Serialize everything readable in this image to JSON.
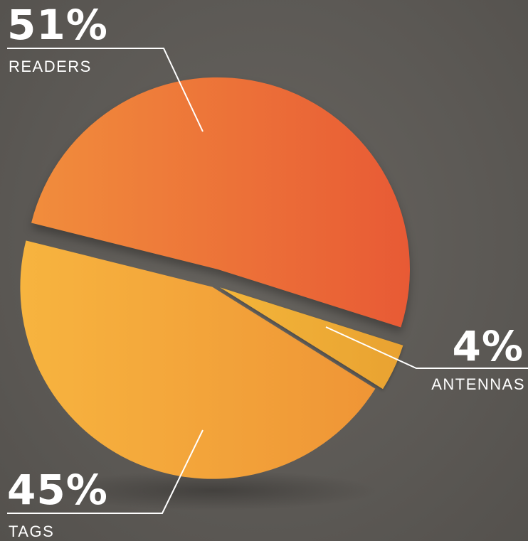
{
  "chart_data": {
    "type": "pie",
    "slices": [
      {
        "label": "READERS",
        "value": 51,
        "value_label": "51%",
        "color": "#eb6336"
      },
      {
        "label": "ANTENNAS",
        "value": 4,
        "value_label": "4%",
        "color": "#f4b23a"
      },
      {
        "label": "TAGS",
        "value": 45,
        "value_label": "45%",
        "color": "#f3a53a"
      }
    ],
    "style": "exploded 3D-shaded pie with leader lines",
    "background": "#5e5b58"
  }
}
